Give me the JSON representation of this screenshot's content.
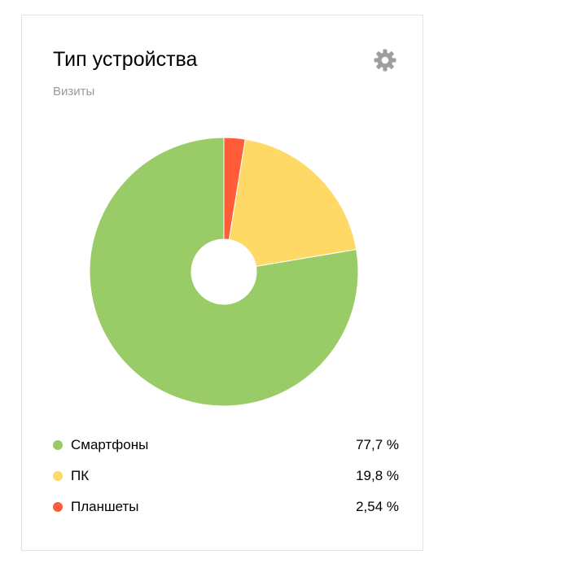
{
  "widget": {
    "title": "Тип устройства",
    "subtitle": "Визиты",
    "settings_icon": "gear-icon"
  },
  "chart_data": {
    "type": "pie",
    "title": "Тип устройства",
    "subtitle": "Визиты",
    "categories": [
      "Смартфоны",
      "ПК",
      "Планшеты"
    ],
    "values": [
      77.7,
      19.8,
      2.54
    ],
    "value_labels": [
      "77,7 %",
      "19,8 %",
      "2,54 %"
    ],
    "colors": [
      "#99cc66",
      "#ffd966",
      "#ff5c39"
    ],
    "donut": true,
    "legend_position": "bottom"
  }
}
